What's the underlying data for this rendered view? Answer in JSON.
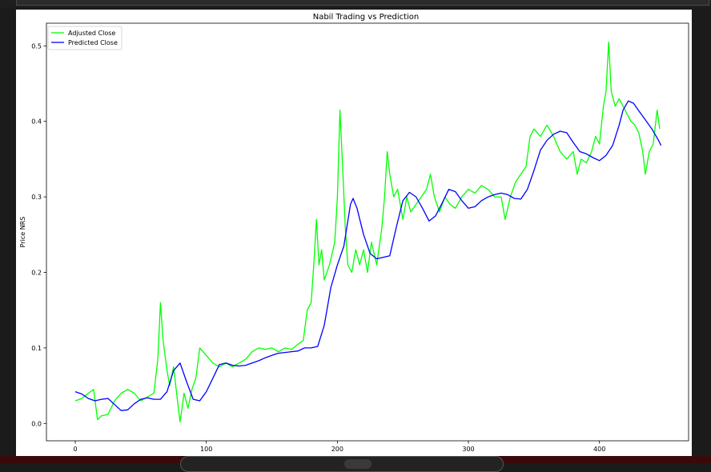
{
  "chart_data": {
    "type": "line",
    "title": "Nabil Trading vs Prediction",
    "xlabel": "",
    "ylabel": "Price NRS",
    "xlim": [
      -22,
      468
    ],
    "ylim": [
      -0.023,
      0.53
    ],
    "x_ticks": [
      0,
      100,
      200,
      300,
      400
    ],
    "y_ticks": [
      0.0,
      0.1,
      0.2,
      0.3,
      0.4,
      0.5
    ],
    "grid": false,
    "legend_position": "top-left",
    "series": [
      {
        "name": "Adjusted Close",
        "color": "#00ff00",
        "points": [
          [
            0,
            0.03
          ],
          [
            5,
            0.033
          ],
          [
            10,
            0.04
          ],
          [
            14,
            0.045
          ],
          [
            17,
            0.005
          ],
          [
            20,
            0.01
          ],
          [
            25,
            0.012
          ],
          [
            30,
            0.03
          ],
          [
            35,
            0.04
          ],
          [
            40,
            0.045
          ],
          [
            45,
            0.04
          ],
          [
            50,
            0.03
          ],
          [
            55,
            0.035
          ],
          [
            60,
            0.04
          ],
          [
            63,
            0.085
          ],
          [
            65,
            0.16
          ],
          [
            67,
            0.11
          ],
          [
            70,
            0.07
          ],
          [
            72,
            0.05
          ],
          [
            75,
            0.075
          ],
          [
            78,
            0.03
          ],
          [
            80,
            0.002
          ],
          [
            83,
            0.04
          ],
          [
            86,
            0.02
          ],
          [
            89,
            0.045
          ],
          [
            92,
            0.06
          ],
          [
            95,
            0.1
          ],
          [
            100,
            0.09
          ],
          [
            105,
            0.08
          ],
          [
            110,
            0.075
          ],
          [
            115,
            0.08
          ],
          [
            120,
            0.075
          ],
          [
            125,
            0.08
          ],
          [
            130,
            0.085
          ],
          [
            135,
            0.095
          ],
          [
            140,
            0.1
          ],
          [
            145,
            0.098
          ],
          [
            150,
            0.1
          ],
          [
            155,
            0.095
          ],
          [
            160,
            0.1
          ],
          [
            165,
            0.098
          ],
          [
            170,
            0.105
          ],
          [
            174,
            0.11
          ],
          [
            177,
            0.15
          ],
          [
            180,
            0.16
          ],
          [
            182,
            0.21
          ],
          [
            184,
            0.27
          ],
          [
            186,
            0.21
          ],
          [
            188,
            0.23
          ],
          [
            190,
            0.19
          ],
          [
            194,
            0.21
          ],
          [
            198,
            0.24
          ],
          [
            200,
            0.3
          ],
          [
            202,
            0.415
          ],
          [
            204,
            0.34
          ],
          [
            206,
            0.26
          ],
          [
            208,
            0.21
          ],
          [
            211,
            0.2
          ],
          [
            214,
            0.23
          ],
          [
            217,
            0.21
          ],
          [
            220,
            0.23
          ],
          [
            223,
            0.2
          ],
          [
            226,
            0.24
          ],
          [
            230,
            0.21
          ],
          [
            234,
            0.26
          ],
          [
            236,
            0.3
          ],
          [
            238,
            0.36
          ],
          [
            240,
            0.33
          ],
          [
            243,
            0.3
          ],
          [
            246,
            0.31
          ],
          [
            250,
            0.27
          ],
          [
            253,
            0.3
          ],
          [
            256,
            0.28
          ],
          [
            260,
            0.29
          ],
          [
            264,
            0.3
          ],
          [
            268,
            0.31
          ],
          [
            271,
            0.33
          ],
          [
            274,
            0.3
          ],
          [
            278,
            0.28
          ],
          [
            282,
            0.3
          ],
          [
            286,
            0.29
          ],
          [
            290,
            0.285
          ],
          [
            295,
            0.3
          ],
          [
            300,
            0.31
          ],
          [
            305,
            0.305
          ],
          [
            310,
            0.315
          ],
          [
            315,
            0.31
          ],
          [
            320,
            0.3
          ],
          [
            325,
            0.3
          ],
          [
            328,
            0.27
          ],
          [
            332,
            0.3
          ],
          [
            336,
            0.32
          ],
          [
            340,
            0.33
          ],
          [
            344,
            0.34
          ],
          [
            347,
            0.38
          ],
          [
            350,
            0.39
          ],
          [
            355,
            0.38
          ],
          [
            360,
            0.395
          ],
          [
            365,
            0.38
          ],
          [
            370,
            0.36
          ],
          [
            375,
            0.35
          ],
          [
            380,
            0.36
          ],
          [
            383,
            0.33
          ],
          [
            386,
            0.35
          ],
          [
            390,
            0.345
          ],
          [
            394,
            0.36
          ],
          [
            397,
            0.38
          ],
          [
            400,
            0.37
          ],
          [
            403,
            0.42
          ],
          [
            405,
            0.44
          ],
          [
            407,
            0.505
          ],
          [
            409,
            0.44
          ],
          [
            412,
            0.42
          ],
          [
            415,
            0.43
          ],
          [
            418,
            0.42
          ],
          [
            421,
            0.41
          ],
          [
            424,
            0.4
          ],
          [
            427,
            0.395
          ],
          [
            430,
            0.385
          ],
          [
            433,
            0.36
          ],
          [
            435,
            0.33
          ],
          [
            438,
            0.36
          ],
          [
            441,
            0.37
          ],
          [
            444,
            0.415
          ],
          [
            446,
            0.39
          ]
        ]
      },
      {
        "name": "Predicted Close",
        "color": "#0000ff",
        "points": [
          [
            0,
            0.042
          ],
          [
            5,
            0.039
          ],
          [
            10,
            0.033
          ],
          [
            15,
            0.03
          ],
          [
            20,
            0.032
          ],
          [
            25,
            0.033
          ],
          [
            30,
            0.025
          ],
          [
            35,
            0.017
          ],
          [
            40,
            0.018
          ],
          [
            45,
            0.026
          ],
          [
            50,
            0.032
          ],
          [
            55,
            0.034
          ],
          [
            60,
            0.032
          ],
          [
            65,
            0.032
          ],
          [
            70,
            0.042
          ],
          [
            75,
            0.07
          ],
          [
            80,
            0.08
          ],
          [
            85,
            0.055
          ],
          [
            90,
            0.032
          ],
          [
            95,
            0.03
          ],
          [
            100,
            0.042
          ],
          [
            105,
            0.06
          ],
          [
            110,
            0.078
          ],
          [
            115,
            0.08
          ],
          [
            120,
            0.077
          ],
          [
            125,
            0.076
          ],
          [
            130,
            0.077
          ],
          [
            135,
            0.08
          ],
          [
            140,
            0.083
          ],
          [
            145,
            0.087
          ],
          [
            150,
            0.09
          ],
          [
            155,
            0.093
          ],
          [
            160,
            0.094
          ],
          [
            165,
            0.095
          ],
          [
            170,
            0.096
          ],
          [
            175,
            0.1
          ],
          [
            180,
            0.1
          ],
          [
            185,
            0.102
          ],
          [
            190,
            0.13
          ],
          [
            195,
            0.18
          ],
          [
            200,
            0.21
          ],
          [
            205,
            0.235
          ],
          [
            210,
            0.29
          ],
          [
            212,
            0.298
          ],
          [
            215,
            0.285
          ],
          [
            220,
            0.25
          ],
          [
            225,
            0.225
          ],
          [
            230,
            0.218
          ],
          [
            235,
            0.22
          ],
          [
            240,
            0.222
          ],
          [
            245,
            0.26
          ],
          [
            250,
            0.295
          ],
          [
            255,
            0.306
          ],
          [
            260,
            0.3
          ],
          [
            265,
            0.285
          ],
          [
            270,
            0.268
          ],
          [
            275,
            0.275
          ],
          [
            280,
            0.292
          ],
          [
            285,
            0.31
          ],
          [
            290,
            0.307
          ],
          [
            295,
            0.295
          ],
          [
            300,
            0.285
          ],
          [
            305,
            0.287
          ],
          [
            310,
            0.295
          ],
          [
            315,
            0.3
          ],
          [
            320,
            0.303
          ],
          [
            325,
            0.305
          ],
          [
            330,
            0.303
          ],
          [
            335,
            0.298
          ],
          [
            340,
            0.297
          ],
          [
            345,
            0.31
          ],
          [
            350,
            0.335
          ],
          [
            355,
            0.362
          ],
          [
            360,
            0.375
          ],
          [
            365,
            0.383
          ],
          [
            370,
            0.387
          ],
          [
            375,
            0.385
          ],
          [
            380,
            0.372
          ],
          [
            385,
            0.36
          ],
          [
            390,
            0.357
          ],
          [
            395,
            0.352
          ],
          [
            400,
            0.348
          ],
          [
            405,
            0.355
          ],
          [
            410,
            0.368
          ],
          [
            415,
            0.395
          ],
          [
            418,
            0.415
          ],
          [
            422,
            0.427
          ],
          [
            426,
            0.424
          ],
          [
            430,
            0.414
          ],
          [
            435,
            0.402
          ],
          [
            440,
            0.39
          ],
          [
            445,
            0.375
          ],
          [
            447,
            0.368
          ]
        ]
      }
    ]
  }
}
